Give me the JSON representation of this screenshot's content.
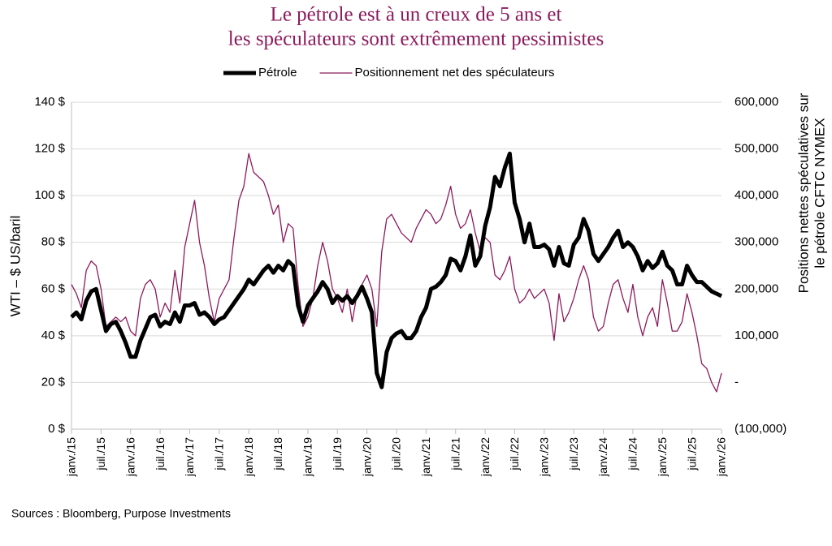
{
  "chart_data": {
    "type": "line",
    "title": [
      "Le pétrole est à un creux de 5 ans et",
      "les spéculateurs sont extrêmement pessimistes"
    ],
    "y_label": "WTI – $ US/baril",
    "y2_label": [
      "Positions nettes spéculatives sur",
      "le pétrole CFTC NYMEX"
    ],
    "source": "Sources : Bloomberg, Purpose Investments",
    "grid": true,
    "x": [
      "2015-01",
      "2015-02",
      "2015-03",
      "2015-04",
      "2015-05",
      "2015-06",
      "2015-07",
      "2015-08",
      "2015-09",
      "2015-10",
      "2015-11",
      "2015-12",
      "2016-01",
      "2016-02",
      "2016-03",
      "2016-04",
      "2016-05",
      "2016-06",
      "2016-07",
      "2016-08",
      "2016-09",
      "2016-10",
      "2016-11",
      "2016-12",
      "2017-01",
      "2017-02",
      "2017-03",
      "2017-04",
      "2017-05",
      "2017-06",
      "2017-07",
      "2017-08",
      "2017-09",
      "2017-10",
      "2017-11",
      "2017-12",
      "2018-01",
      "2018-02",
      "2018-03",
      "2018-04",
      "2018-05",
      "2018-06",
      "2018-07",
      "2018-08",
      "2018-09",
      "2018-10",
      "2018-11",
      "2018-12",
      "2019-01",
      "2019-02",
      "2019-03",
      "2019-04",
      "2019-05",
      "2019-06",
      "2019-07",
      "2019-08",
      "2019-09",
      "2019-10",
      "2019-11",
      "2019-12",
      "2020-01",
      "2020-02",
      "2020-03",
      "2020-04",
      "2020-05",
      "2020-06",
      "2020-07",
      "2020-08",
      "2020-09",
      "2020-10",
      "2020-11",
      "2020-12",
      "2021-01",
      "2021-02",
      "2021-03",
      "2021-04",
      "2021-05",
      "2021-06",
      "2021-07",
      "2021-08",
      "2021-09",
      "2021-10",
      "2021-11",
      "2021-12",
      "2022-01",
      "2022-02",
      "2022-03",
      "2022-04",
      "2022-05",
      "2022-06",
      "2022-07",
      "2022-08",
      "2022-09",
      "2022-10",
      "2022-11",
      "2022-12",
      "2023-01",
      "2023-02",
      "2023-03",
      "2023-04",
      "2023-05",
      "2023-06",
      "2023-07",
      "2023-08",
      "2023-09",
      "2023-10",
      "2023-11",
      "2023-12",
      "2024-01",
      "2024-02",
      "2024-03",
      "2024-04",
      "2024-05",
      "2024-06",
      "2024-07",
      "2024-08",
      "2024-09",
      "2024-10",
      "2024-11",
      "2024-12",
      "2025-01",
      "2025-02",
      "2025-03",
      "2025-04",
      "2025-05",
      "2025-06",
      "2025-07",
      "2025-08",
      "2025-09",
      "2025-10",
      "2025-11",
      "2025-12",
      "2026-01"
    ],
    "xlim": [
      "2015-01",
      "2026-01"
    ],
    "xticks": [
      {
        "value": "2015-01",
        "label": "janv./15"
      },
      {
        "value": "2015-07",
        "label": "juil./15"
      },
      {
        "value": "2016-01",
        "label": "janv./16"
      },
      {
        "value": "2016-07",
        "label": "juil./16"
      },
      {
        "value": "2017-01",
        "label": "janv./17"
      },
      {
        "value": "2017-07",
        "label": "juil./17"
      },
      {
        "value": "2018-01",
        "label": "janv./18"
      },
      {
        "value": "2018-07",
        "label": "juil./18"
      },
      {
        "value": "2019-01",
        "label": "janv./19"
      },
      {
        "value": "2019-07",
        "label": "juil./19"
      },
      {
        "value": "2020-01",
        "label": "janv./20"
      },
      {
        "value": "2020-07",
        "label": "juil./20"
      },
      {
        "value": "2021-01",
        "label": "janv./21"
      },
      {
        "value": "2021-07",
        "label": "juil./21"
      },
      {
        "value": "2022-01",
        "label": "janv./22"
      },
      {
        "value": "2022-07",
        "label": "juil./22"
      },
      {
        "value": "2023-01",
        "label": "janv./23"
      },
      {
        "value": "2023-07",
        "label": "juil./23"
      },
      {
        "value": "2024-01",
        "label": "janv./24"
      },
      {
        "value": "2024-07",
        "label": "juil./24"
      },
      {
        "value": "2025-01",
        "label": "janv./25"
      },
      {
        "value": "2025-07",
        "label": "juil./25"
      },
      {
        "value": "2026-01",
        "label": "janv./26"
      }
    ],
    "ylim": [
      0,
      140
    ],
    "yticks": [
      {
        "value": 0,
        "label": "0 $"
      },
      {
        "value": 20,
        "label": "20 $"
      },
      {
        "value": 40,
        "label": "40 $"
      },
      {
        "value": 60,
        "label": "60 $"
      },
      {
        "value": 80,
        "label": "80 $"
      },
      {
        "value": 100,
        "label": "100 $"
      },
      {
        "value": 120,
        "label": "120 $"
      },
      {
        "value": 140,
        "label": "140 $"
      }
    ],
    "y2lim": [
      -100000,
      600000
    ],
    "y2ticks": [
      {
        "value": -100000,
        "label": "(100,000)"
      },
      {
        "value": 0,
        "label": "-"
      },
      {
        "value": 100000,
        "label": "100,000"
      },
      {
        "value": 200000,
        "label": "200,000"
      },
      {
        "value": 300000,
        "label": "300,000"
      },
      {
        "value": 400000,
        "label": "400,000"
      },
      {
        "value": 500000,
        "label": "500,000"
      },
      {
        "value": 600000,
        "label": "600,000"
      }
    ],
    "series": [
      {
        "name": "Pétrole",
        "color": "#000000",
        "values": [
          48,
          50,
          47,
          55,
          59,
          60,
          51,
          42,
          45,
          46,
          42,
          37,
          31,
          31,
          38,
          43,
          48,
          49,
          44,
          46,
          45,
          50,
          46,
          53,
          53,
          54,
          49,
          50,
          48,
          45,
          47,
          48,
          51,
          54,
          57,
          60,
          64,
          62,
          65,
          68,
          70,
          67,
          70,
          68,
          72,
          70,
          53,
          46,
          53,
          56,
          59,
          63,
          60,
          54,
          57,
          55,
          57,
          54,
          57,
          61,
          56,
          50,
          24,
          18,
          33,
          39,
          41,
          42,
          39,
          39,
          42,
          48,
          52,
          60,
          61,
          63,
          66,
          73,
          72,
          68,
          74,
          83,
          70,
          74,
          87,
          95,
          108,
          104,
          112,
          118,
          97,
          90,
          80,
          88,
          78,
          78,
          79,
          77,
          70,
          78,
          71,
          70,
          79,
          82,
          90,
          85,
          75,
          72,
          75,
          78,
          82,
          85,
          78,
          80,
          78,
          74,
          68,
          72,
          69,
          71,
          76,
          70,
          68,
          62,
          62,
          70,
          66,
          63,
          63,
          61,
          59,
          58,
          57
        ]
      },
      {
        "name": "Positionnement net des spéculateurs",
        "color": "#8b1a5c",
        "axis": "y2",
        "values": [
          210000,
          190000,
          160000,
          240000,
          260000,
          250000,
          200000,
          120000,
          130000,
          140000,
          130000,
          140000,
          110000,
          100000,
          180000,
          210000,
          220000,
          200000,
          140000,
          170000,
          150000,
          240000,
          170000,
          290000,
          340000,
          390000,
          300000,
          250000,
          180000,
          130000,
          180000,
          200000,
          220000,
          310000,
          390000,
          420000,
          490000,
          450000,
          440000,
          430000,
          400000,
          360000,
          380000,
          300000,
          340000,
          330000,
          210000,
          120000,
          140000,
          180000,
          250000,
          300000,
          260000,
          200000,
          180000,
          150000,
          200000,
          130000,
          190000,
          210000,
          230000,
          200000,
          120000,
          280000,
          350000,
          360000,
          340000,
          320000,
          310000,
          300000,
          330000,
          350000,
          370000,
          360000,
          340000,
          350000,
          380000,
          420000,
          360000,
          330000,
          340000,
          370000,
          320000,
          280000,
          310000,
          300000,
          230000,
          220000,
          240000,
          270000,
          200000,
          170000,
          180000,
          200000,
          180000,
          190000,
          200000,
          170000,
          90000,
          190000,
          130000,
          150000,
          180000,
          220000,
          250000,
          220000,
          140000,
          110000,
          120000,
          170000,
          210000,
          220000,
          180000,
          150000,
          210000,
          140000,
          100000,
          140000,
          160000,
          120000,
          220000,
          170000,
          110000,
          110000,
          130000,
          190000,
          150000,
          100000,
          40000,
          30000,
          0,
          -20000,
          20000
        ]
      }
    ]
  }
}
